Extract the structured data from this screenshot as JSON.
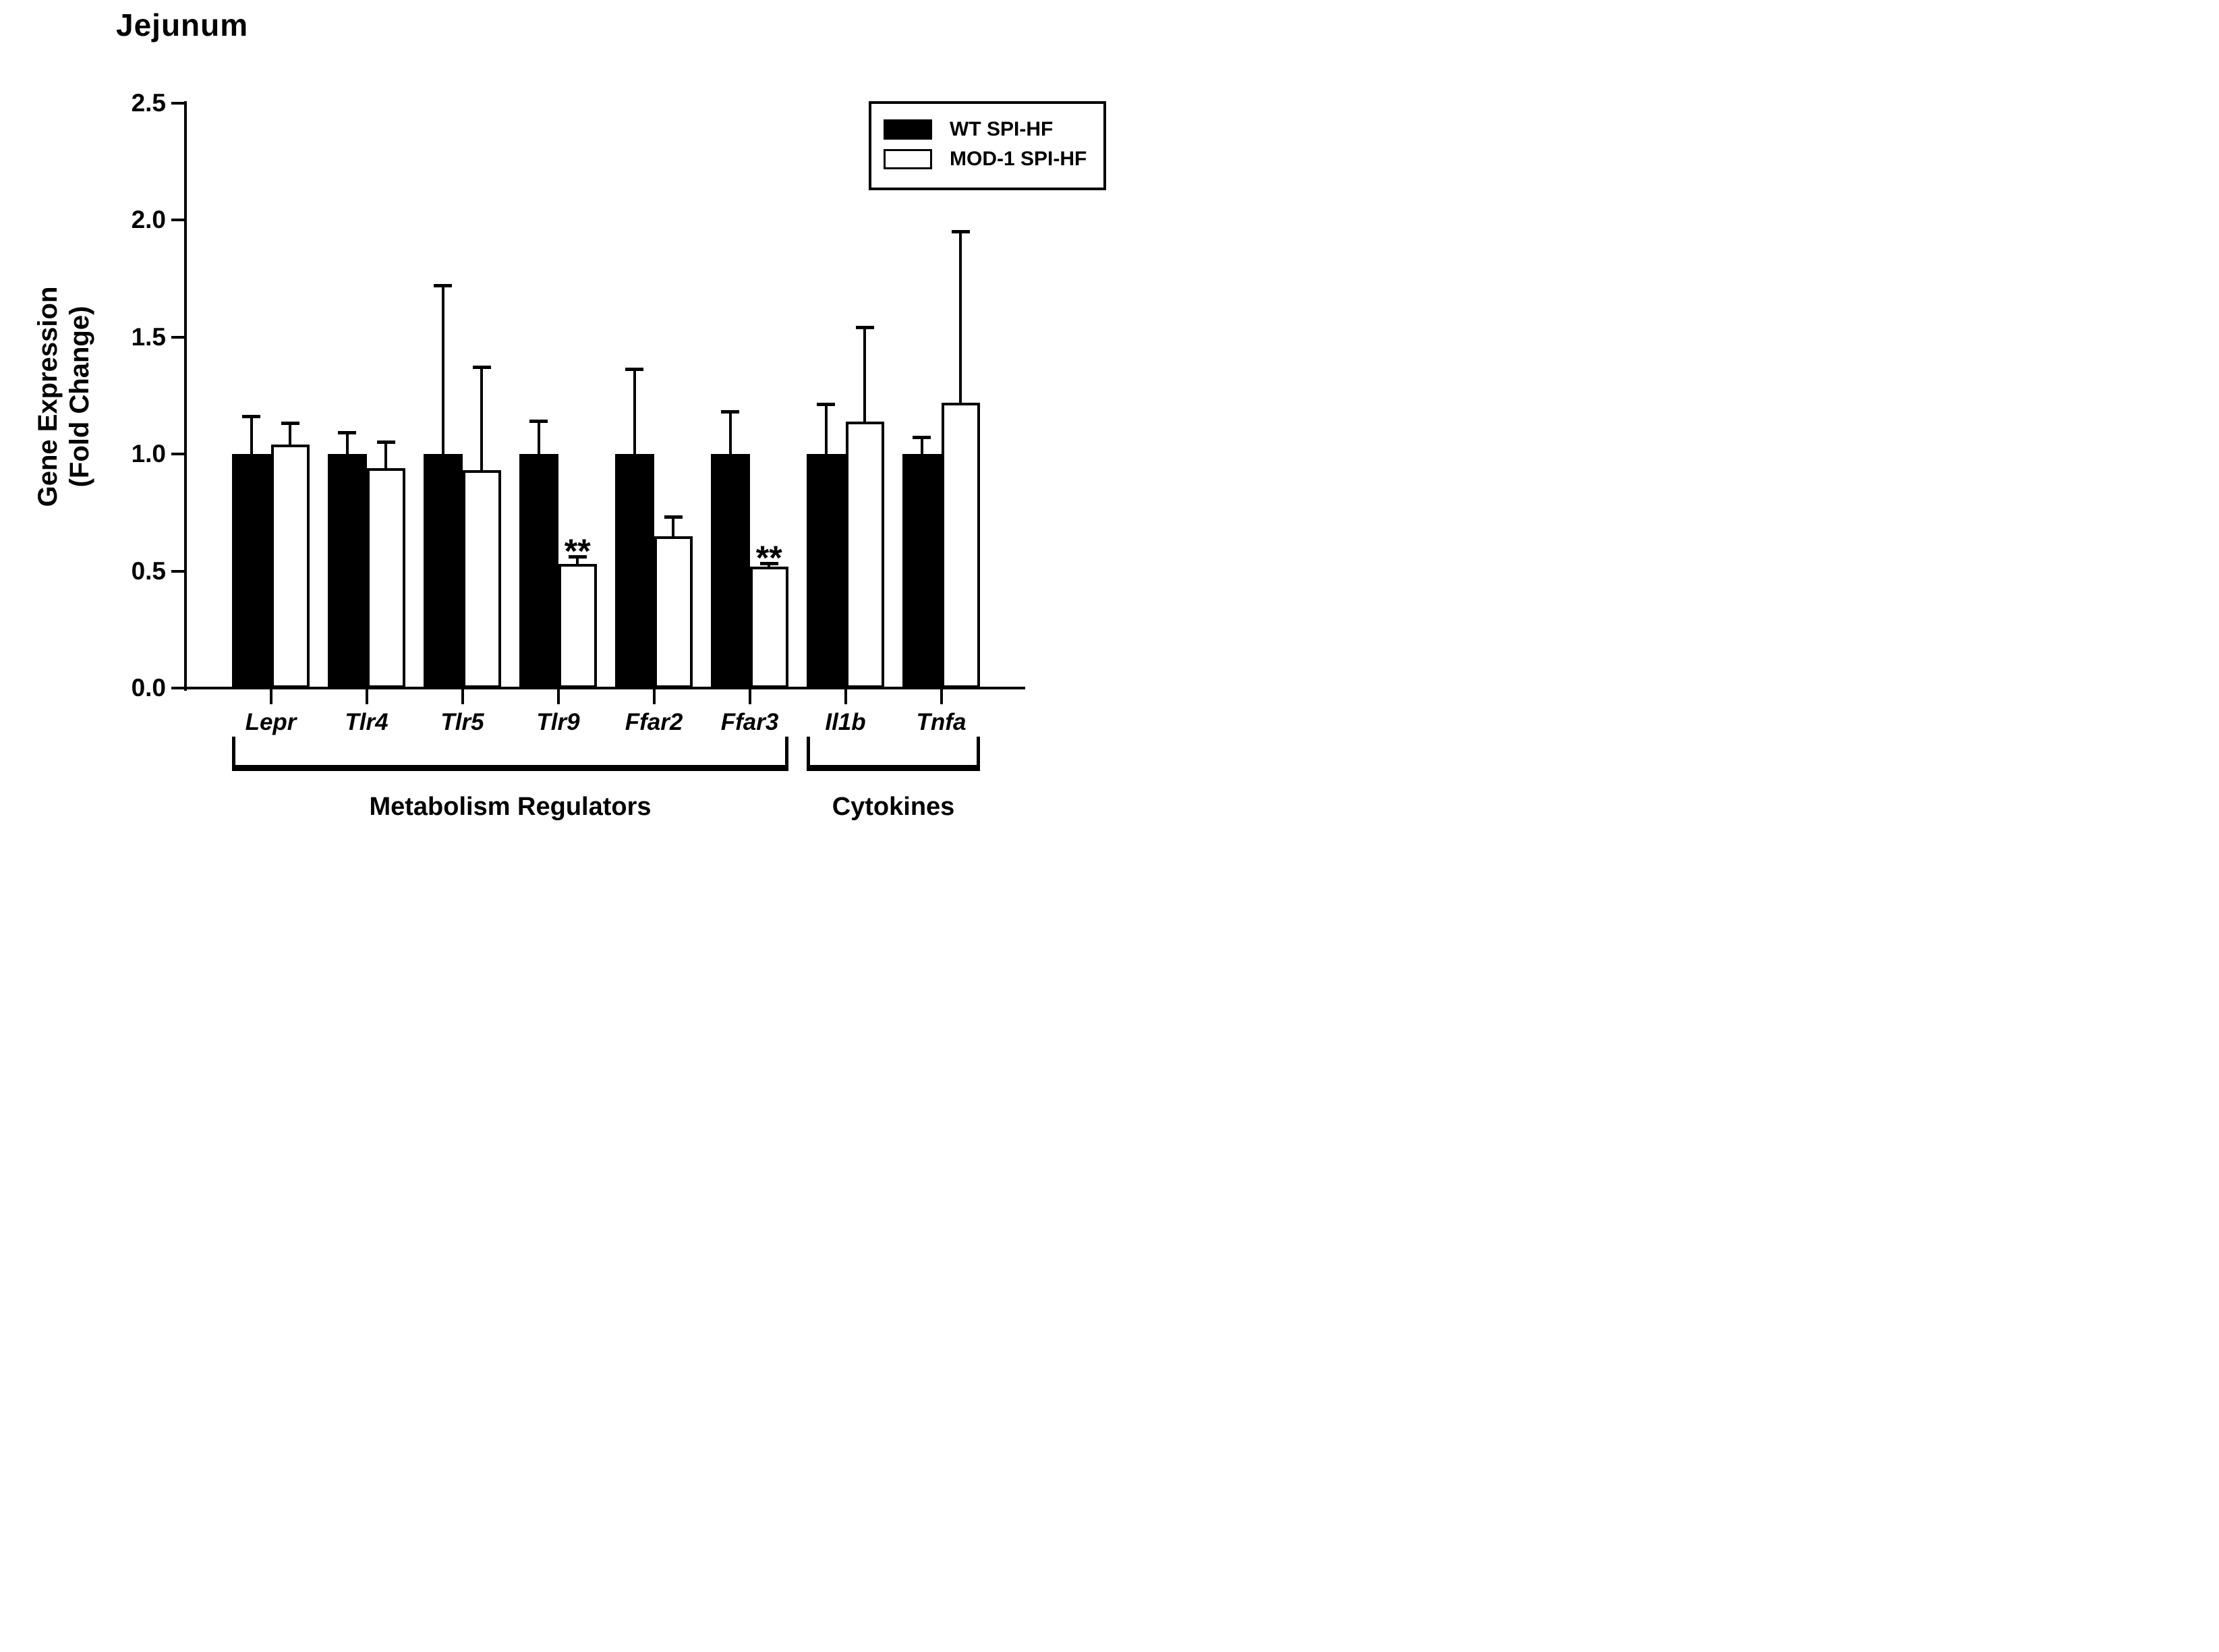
{
  "colors": {
    "foreground": "#000000",
    "background": "#ffffff",
    "wt_fill": "#000000",
    "mod_fill": "#ffffff"
  },
  "chart_data": {
    "type": "bar",
    "title": "Jejunum",
    "ylabel_lines": [
      "Gene Expression",
      "(Fold Change)"
    ],
    "ylabel": "Gene Expression (Fold Change)",
    "xlabel": "",
    "ylim": [
      0,
      2.5
    ],
    "yticks": [
      "0.0",
      "0.5",
      "1.0",
      "1.5",
      "2.0",
      "2.5"
    ],
    "grid": false,
    "legend_position": "top-right",
    "categories": [
      "Lepr",
      "Tlr4",
      "Tlr5",
      "Tlr9",
      "Ffar2",
      "Ffar3",
      "Il1b",
      "Tnfa"
    ],
    "series": [
      {
        "name": "WT SPI-HF",
        "fill": "#000000",
        "values": [
          1.0,
          1.0,
          1.0,
          1.0,
          1.0,
          1.0,
          1.0,
          1.0
        ],
        "errors_up": [
          0.16,
          0.09,
          0.72,
          0.14,
          0.36,
          0.18,
          0.21,
          0.07
        ],
        "sig": [
          "",
          "",
          "",
          "",
          "",
          "",
          "",
          ""
        ]
      },
      {
        "name": "MOD-1 SPI-HF",
        "fill": "#ffffff",
        "values": [
          1.04,
          0.94,
          0.93,
          0.53,
          0.65,
          0.52,
          1.14,
          1.22
        ],
        "errors_up": [
          0.09,
          0.11,
          0.44,
          0.03,
          0.08,
          0.01,
          0.4,
          0.73
        ],
        "sig": [
          "",
          "",
          "",
          "**",
          "",
          "**",
          "",
          ""
        ]
      }
    ],
    "group_brackets": [
      {
        "label": "Metabolism Regulators",
        "from": 0,
        "to": 5
      },
      {
        "label": "Cytokines",
        "from": 6,
        "to": 7
      }
    ]
  }
}
